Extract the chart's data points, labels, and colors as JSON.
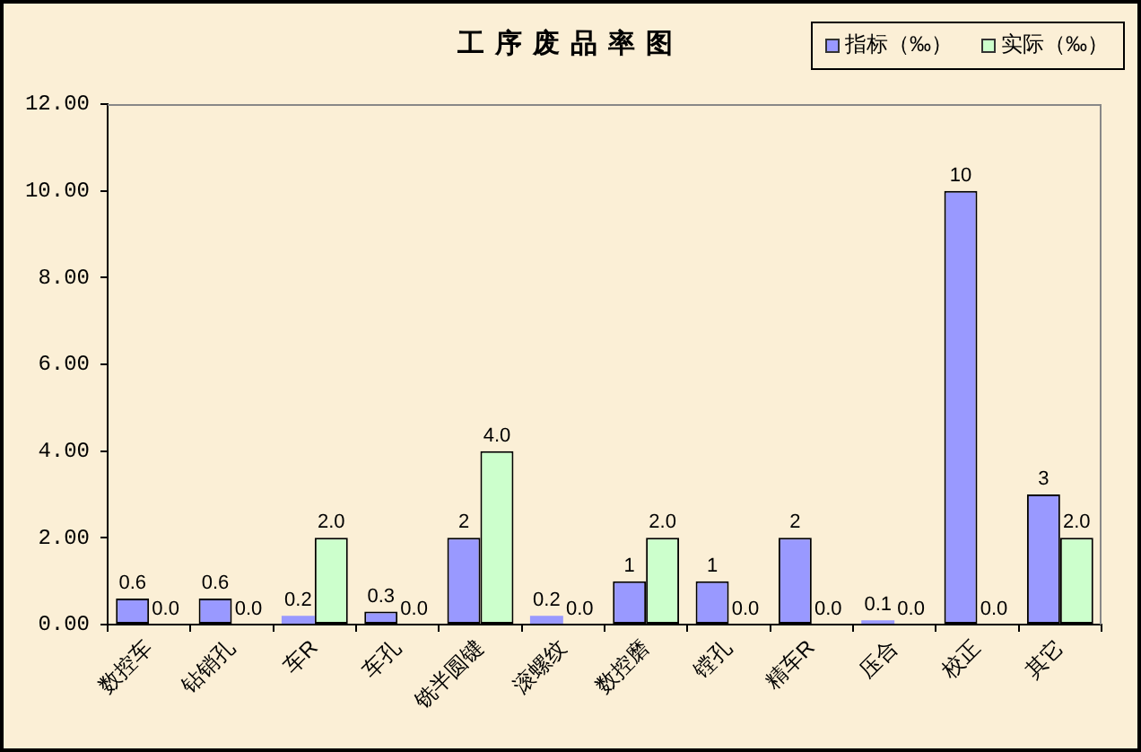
{
  "chart_data": {
    "type": "bar",
    "title": "工序废品率图",
    "categories": [
      "数控车",
      "钻销孔",
      "车R",
      "车孔",
      "铣半圆键",
      "滚螺纹",
      "数控磨",
      "镗孔",
      "精车R",
      "压合",
      "校正",
      "其它"
    ],
    "series": [
      {
        "name": "指标（‰）",
        "color": "#9999ff",
        "values": [
          0.6,
          0.6,
          0.2,
          0.3,
          2,
          0.2,
          1,
          1,
          2,
          0.1,
          10,
          3
        ],
        "value_labels": [
          "0.6",
          "0.6",
          "0.2",
          "0.3",
          "2",
          "0.2",
          "1",
          "1",
          "2",
          "0.1",
          "10",
          "3"
        ]
      },
      {
        "name": "实际（‰）",
        "color": "#ccffcc",
        "values": [
          0,
          0,
          2,
          0,
          4,
          0,
          2,
          0,
          0,
          0,
          0,
          2
        ],
        "value_labels": [
          "0.0",
          "0.0",
          "2.0",
          "0.0",
          "4.0",
          "0.0",
          "2.0",
          "0.0",
          "0.0",
          "0.0",
          "0.0",
          "2.0"
        ]
      }
    ],
    "ylim": [
      0,
      12
    ],
    "yticks": [
      {
        "value": 0,
        "label": "0.00"
      },
      {
        "value": 2,
        "label": "2.00"
      },
      {
        "value": 4,
        "label": "4.00"
      },
      {
        "value": 6,
        "label": "6.00"
      },
      {
        "value": 8,
        "label": "8.00"
      },
      {
        "value": 10,
        "label": "10.00"
      },
      {
        "value": 12,
        "label": "12.00"
      }
    ],
    "legend": "top right"
  }
}
